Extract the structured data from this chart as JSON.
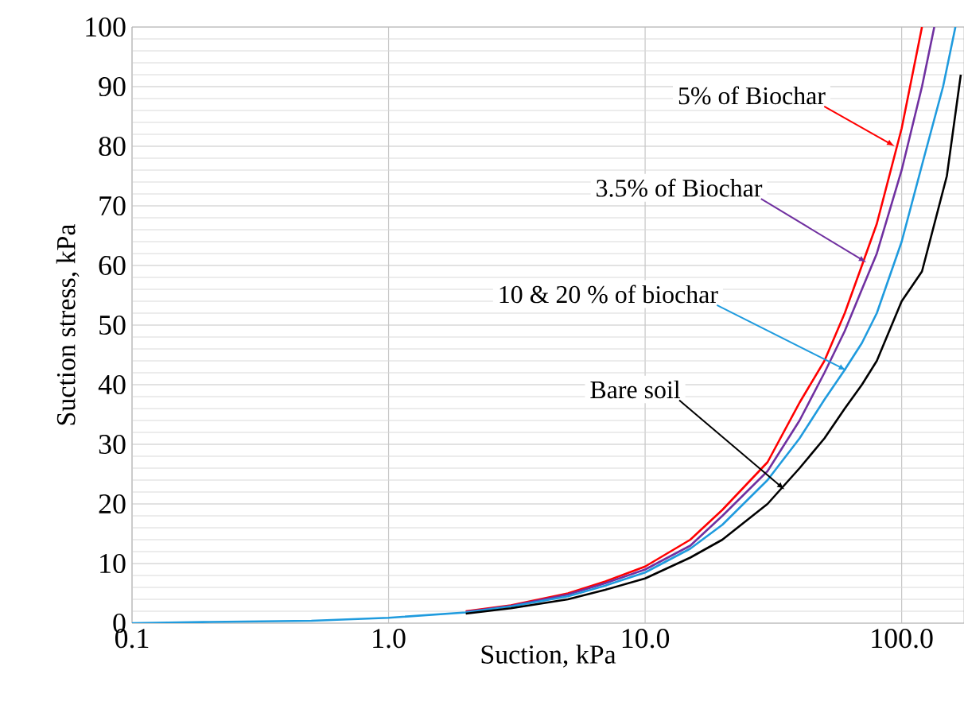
{
  "chart_data": {
    "type": "line",
    "xlabel": "Suction, kPa",
    "ylabel": "Suction stress, kPa",
    "log": "x",
    "xlim": [
      0.1,
      175
    ],
    "ylim": [
      0,
      100
    ],
    "xticks": [
      {
        "value": 0.1,
        "label": "0.1"
      },
      {
        "value": 1,
        "label": "1.0"
      },
      {
        "value": 10,
        "label": "10.0"
      },
      {
        "value": 100,
        "label": "100.0"
      }
    ],
    "yticks": [
      0,
      10,
      20,
      30,
      40,
      50,
      60,
      70,
      80,
      90,
      100
    ],
    "grid": true,
    "marker": "none",
    "line_style": "solid",
    "series": [
      {
        "color": "#ff0000",
        "x": [
          2,
          3,
          5,
          7,
          10,
          15,
          20,
          30,
          40,
          50,
          60,
          70,
          80,
          100,
          120
        ],
        "values": [
          2,
          3,
          5,
          7,
          9.5,
          14,
          19,
          27,
          37,
          44,
          52,
          60,
          67,
          83,
          100
        ]
      },
      {
        "color": "#7030a0",
        "x": [
          2,
          3,
          5,
          7,
          10,
          15,
          20,
          30,
          40,
          50,
          60,
          70,
          80,
          100,
          120,
          134
        ],
        "values": [
          1.9,
          2.9,
          4.8,
          6.7,
          9,
          13,
          18,
          25.5,
          34,
          42,
          49,
          56,
          62,
          76,
          90,
          100
        ]
      },
      {
        "color": "#1f9bde",
        "x": [
          0.1,
          0.2,
          0.5,
          1,
          2,
          3,
          5,
          7,
          10,
          15,
          20,
          30,
          40,
          50,
          60,
          70,
          80,
          100,
          122,
          145,
          162
        ],
        "values": [
          0,
          0.2,
          0.4,
          0.9,
          1.8,
          2.8,
          4.5,
          6.3,
          8.5,
          12.5,
          16.5,
          24,
          31,
          37.5,
          42.5,
          47,
          52,
          64,
          78,
          90,
          100
        ]
      },
      {
        "color": "#000000",
        "x": [
          2,
          3,
          5,
          7,
          10,
          15,
          20,
          30,
          40,
          50,
          60,
          70,
          80,
          100,
          120,
          150,
          170
        ],
        "values": [
          1.6,
          2.5,
          4,
          5.6,
          7.5,
          11,
          14,
          20,
          26,
          31,
          36,
          40,
          44,
          54,
          59,
          75,
          92
        ]
      }
    ],
    "annotations": [
      {
        "text": "5% of Biochar",
        "x": 94,
        "y": 80
      },
      {
        "text": "3.5% of Biochar",
        "x": 73,
        "y": 60.5
      },
      {
        "text": "10 & 20 % of biochar",
        "x": 61,
        "y": 42.4
      },
      {
        "text": "Bare soil",
        "x": 35,
        "y": 22.4
      }
    ]
  }
}
